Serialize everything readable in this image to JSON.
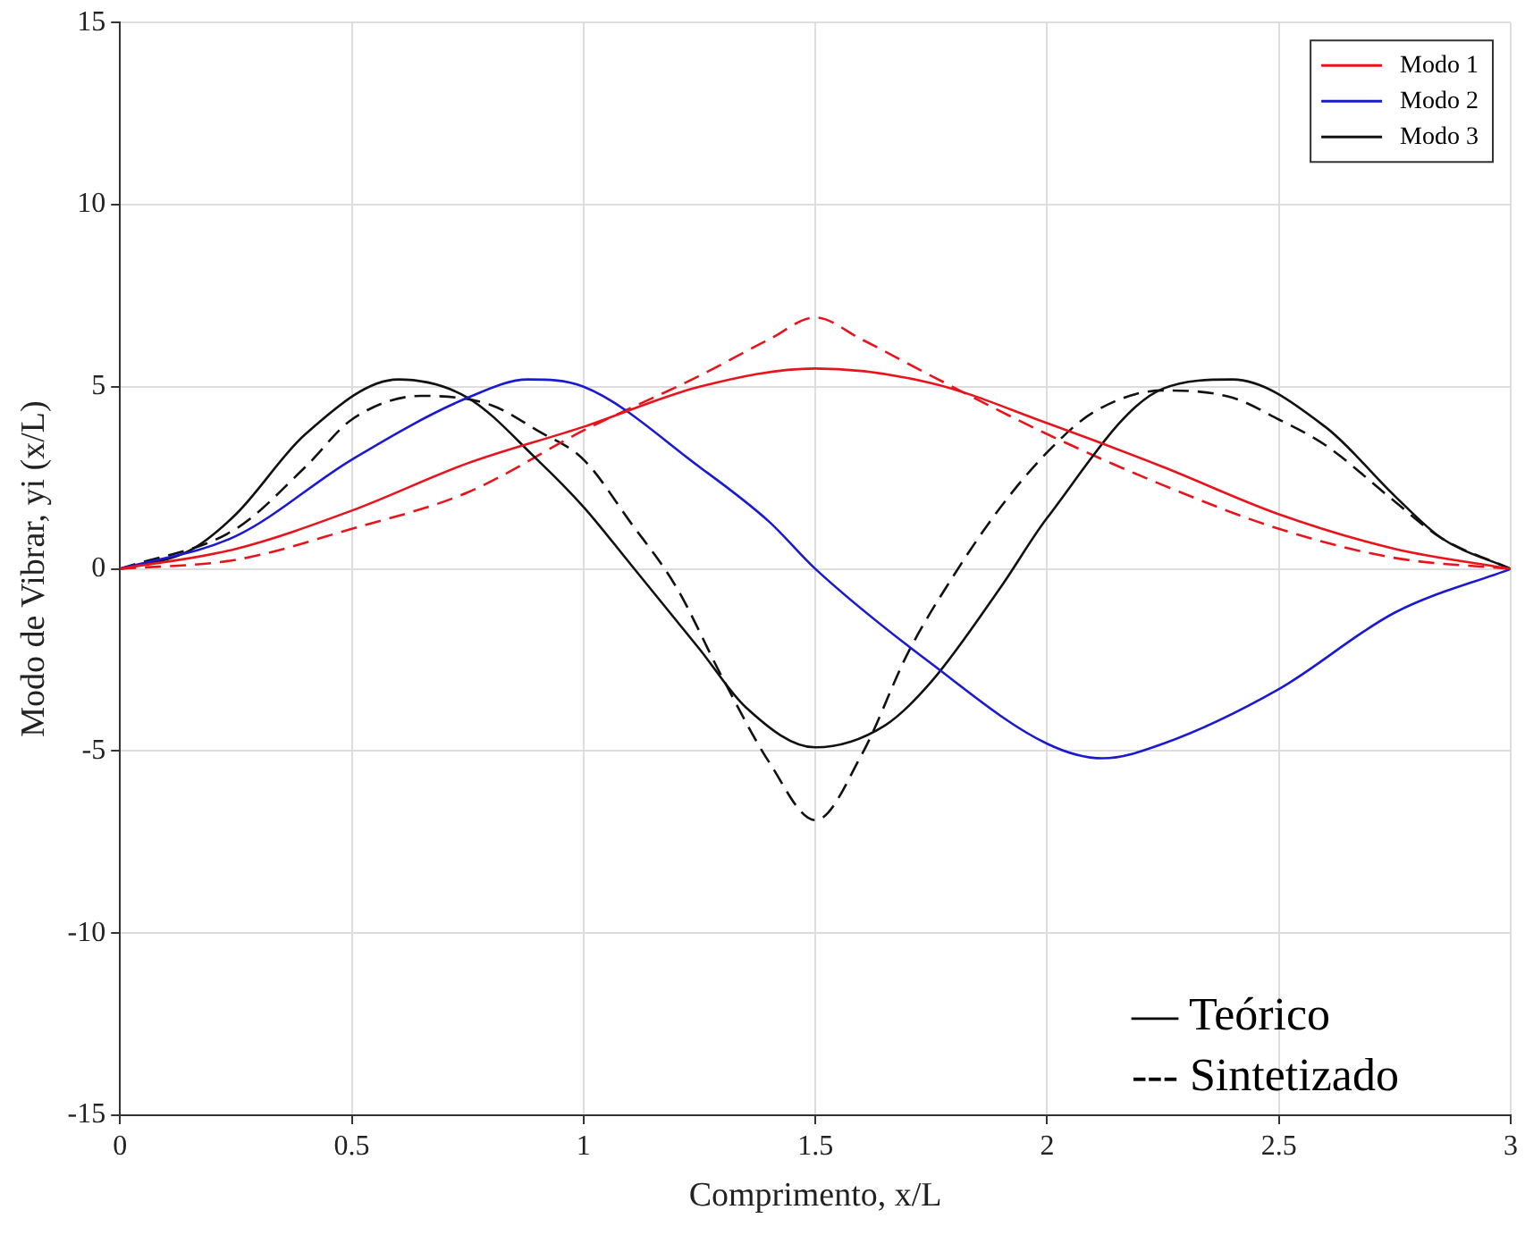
{
  "chart_data": {
    "type": "line",
    "xlabel": "Comprimento, x/L",
    "ylabel": "Modo de Vibrar, yi (x/L)",
    "xlim": [
      0,
      3
    ],
    "xticks": [
      0,
      0.5,
      1,
      1.5,
      2,
      2.5,
      3
    ],
    "ylim": [
      -15,
      15
    ],
    "yticks": [
      -15,
      -10,
      -5,
      0,
      5,
      10,
      15
    ],
    "grid": true,
    "legend": "top right",
    "marker": "none",
    "annotations": [
      "— Teórico",
      "--- Sintetizado"
    ],
    "series": [
      {
        "name": "Modo 1",
        "color": "#e8141c",
        "line_style": "solid",
        "x": [
          0,
          0.25,
          0.5,
          0.75,
          1,
          1.25,
          1.5,
          1.75,
          2,
          2.25,
          2.5,
          2.75,
          3
        ],
        "values": [
          0,
          0.55,
          1.6,
          2.9,
          3.9,
          5.0,
          5.5,
          5.1,
          4.0,
          2.8,
          1.5,
          0.55,
          0
        ]
      },
      {
        "name": "Modo 2",
        "color": "#1a1ad0",
        "line_style": "solid",
        "x": [
          0,
          0.25,
          0.5,
          0.75,
          0.88,
          1,
          1.25,
          1.4,
          1.5,
          1.75,
          2,
          2.12,
          2.25,
          2.5,
          2.75,
          3
        ],
        "values": [
          0,
          0.9,
          3.0,
          4.7,
          5.2,
          5.0,
          2.8,
          1.3,
          0,
          -2.6,
          -4.8,
          -5.2,
          -4.8,
          -3.3,
          -1.2,
          0
        ]
      },
      {
        "name": "Modo 3",
        "color": "#111111",
        "line_style": "solid",
        "x": [
          0,
          0.15,
          0.25,
          0.4,
          0.6,
          0.75,
          0.9,
          1,
          1.1,
          1.25,
          1.35,
          1.5,
          1.65,
          1.75,
          1.9,
          2,
          2.25,
          2.4,
          2.6,
          2.75,
          2.85,
          3
        ],
        "values": [
          0,
          0.5,
          1.5,
          3.7,
          5.2,
          4.7,
          3.0,
          1.7,
          0.15,
          -2.2,
          -3.8,
          -4.9,
          -4.3,
          -3.1,
          -0.5,
          1.4,
          4.95,
          5.2,
          3.9,
          2.0,
          0.85,
          0
        ]
      },
      {
        "color": "#e8141c",
        "line_style": "dashed",
        "x": [
          0,
          0.25,
          0.5,
          0.75,
          1,
          1.25,
          1.4,
          1.5,
          1.6,
          1.75,
          2,
          2.25,
          2.5,
          2.75,
          3
        ],
        "values": [
          0,
          0.25,
          1.1,
          2.1,
          3.8,
          5.3,
          6.3,
          6.9,
          6.3,
          5.3,
          3.7,
          2.3,
          1.1,
          0.3,
          0
        ]
      },
      {
        "color": "#111111",
        "line_style": "dashed",
        "x": [
          0,
          0.25,
          0.4,
          0.5,
          0.65,
          0.8,
          0.9,
          1,
          1.1,
          1.2,
          1.3,
          1.4,
          1.5,
          1.6,
          1.7,
          1.8,
          1.9,
          2,
          2.1,
          2.25,
          2.4,
          2.5,
          2.6,
          2.75,
          2.85,
          3
        ],
        "values": [
          0,
          1.1,
          2.8,
          4.1,
          4.75,
          4.5,
          3.8,
          3.0,
          1.3,
          -0.5,
          -3.0,
          -5.3,
          -6.9,
          -5.1,
          -2.3,
          -0.15,
          1.7,
          3.2,
          4.3,
          4.9,
          4.7,
          4.1,
          3.4,
          1.85,
          0.85,
          0
        ]
      }
    ]
  }
}
